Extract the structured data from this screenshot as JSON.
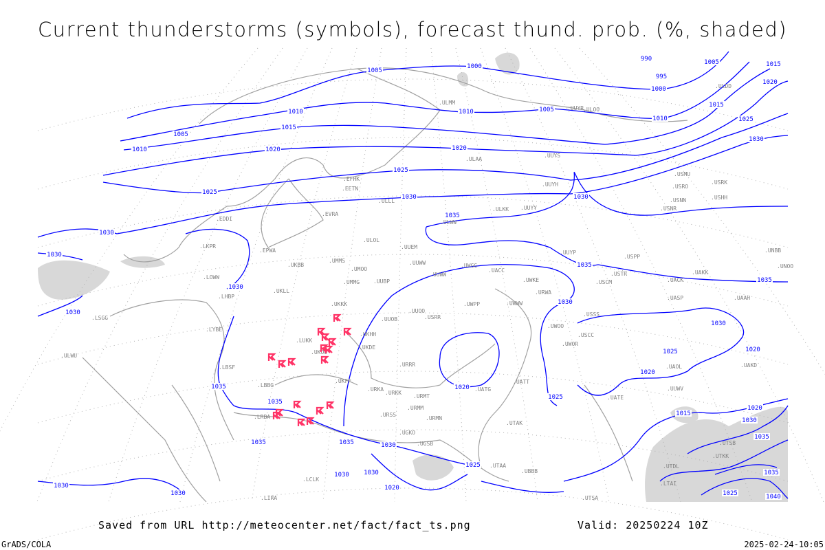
{
  "title": "Current thunderstorms (symbols), forecast thund. prob. (%, shaded)",
  "footer": {
    "saved_from": "Saved from URL http://meteocenter.net/fact/fact_ts.png",
    "valid": "Valid: 20250224 10Z",
    "software": "GrADS/COLA",
    "timestamp": "2025-02-24-10:05"
  },
  "colors": {
    "isobar": "#0000ff",
    "coastline": "#a0a0a0",
    "storm_symbol": "#ff3366",
    "probability_shade": "#d8d8d8",
    "station_label": "#808080"
  },
  "isobar_labels": [
    "1005",
    "1000",
    "990",
    "995",
    "1005",
    "1015",
    "1020",
    "1000",
    "1010",
    "1005",
    "1010",
    "1015",
    "1010",
    "1005",
    "1010",
    "1020",
    "1015",
    "1020",
    "1025",
    "1030",
    "1025",
    "1025",
    "1030",
    "1030",
    "1035",
    "1030",
    "1030",
    "1035",
    "1035",
    "1030",
    "1030",
    "1025",
    "1020",
    "1025",
    "1020",
    "1035",
    "1035",
    "1035",
    "1030",
    "1035",
    "1030",
    "1020",
    "1025",
    "1030",
    "1015",
    "1020",
    "1030",
    "1035",
    "1035",
    "1040",
    "1030",
    "1030",
    "1030",
    "1020",
    "1030",
    "1025"
  ],
  "stations": [
    "ULAA",
    "ULMM",
    "ULOO",
    "UUYS",
    "UUYH",
    "UUYY",
    "ULKK",
    "ULWW",
    "UUEM",
    "UUWW",
    "UWGG",
    "UWPP",
    "UUOO",
    "UUBP",
    "UMMG",
    "UMMS",
    "UMOO",
    "UKBB",
    "UKLL",
    "UKKK",
    "UUOB",
    "ULLL",
    "ULOL",
    "EVRA",
    "EFHK",
    "EETN",
    "EPWA",
    "EDDI",
    "LKPR",
    "LOWW",
    "LHBP",
    "LYBE",
    "LBSF",
    "LBBG",
    "LRBA",
    "LUKK",
    "UKOO",
    "UKDE",
    "UKHH",
    "UKFF",
    "URKA",
    "URKK",
    "URRR",
    "URMT",
    "URMM",
    "URSS",
    "UGKO",
    "UGSB",
    "URMN",
    "UUWW",
    "UWWW",
    "UWKE",
    "URWA",
    "UATG",
    "UATT",
    "UWOO",
    "UWOR",
    "USCC",
    "USCM",
    "USSS",
    "USTR",
    "USPP",
    "UUYP",
    "UACC",
    "UACK",
    "UASP",
    "UAAH",
    "UAKD",
    "UAOL",
    "UATE",
    "UTAK",
    "UBBB",
    "UTAA",
    "UTSA",
    "UTDL",
    "UTKK",
    "UTSB",
    "LTAI",
    "LCLK",
    "LIRA",
    "LSGG",
    "ULWU",
    "USRR",
    "USNN",
    "USHH",
    "USNR",
    "USRK",
    "USRO",
    "USMU",
    "ULDD",
    "UUYR",
    "UNBB",
    "UNOO",
    "UAKK",
    "UUWV"
  ]
}
